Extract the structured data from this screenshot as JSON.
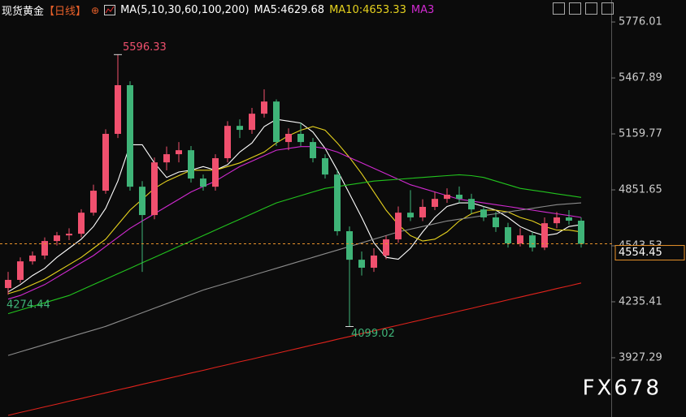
{
  "chart_data": {
    "type": "candlestick",
    "symbol": "现货黄金",
    "period": "【日线】",
    "indicator": "MA(5,10,30,60,100,200)",
    "legend": [
      {
        "label": "MA5:4629.68",
        "color": "#ffffff"
      },
      {
        "label": "MA10:4653.33",
        "color": "#e6d21e"
      },
      {
        "label": "MA3",
        "color": "#d12ad1"
      }
    ],
    "watermark": "FX678",
    "up_color": "#f0506e",
    "down_color": "#3fb478",
    "ylim": [
      3601,
      5897
    ],
    "yticks": [
      3927.29,
      4235.41,
      4543.53,
      4851.65,
      5159.77,
      5467.89,
      5776.01
    ],
    "open": [
      4311,
      4356,
      4458,
      4490,
      4570,
      4601,
      4610,
      4726,
      4847,
      5160,
      5428,
      4869,
      4713,
      5003,
      5048,
      5070,
      4914,
      4869,
      5026,
      5204,
      5182,
      5271,
      5338,
      5115,
      5160,
      5115,
      5026,
      4936,
      4624,
      4467,
      4423,
      4490,
      4579,
      4726,
      4700,
      4758,
      4802,
      4825,
      4802,
      4744,
      4700,
      4646,
      4557,
      4601,
      4534,
      4668,
      4700,
      4682
    ],
    "high": [
      4400,
      4480,
      4512,
      4590,
      4620,
      4640,
      4745,
      4880,
      5185,
      5596.33,
      5450,
      4900,
      5030,
      5090,
      5115,
      5093,
      4936,
      5048,
      5230,
      5240,
      5303,
      5405,
      5350,
      5190,
      5220,
      5137,
      5048,
      4959,
      4650,
      4512,
      4530,
      4600,
      4760,
      4850,
      4800,
      4840,
      4860,
      4870,
      4830,
      4760,
      4730,
      4670,
      4640,
      4620,
      4700,
      4730,
      4740,
      4700
    ],
    "low": [
      4274.44,
      4340,
      4440,
      4470,
      4545,
      4575,
      4590,
      4710,
      4830,
      5137,
      4847,
      4400,
      4690,
      4959,
      5003,
      4892,
      4847,
      4847,
      5003,
      5137,
      5160,
      5250,
      5093,
      5070,
      5093,
      5003,
      4914,
      4600,
      4099.02,
      4380,
      4400,
      4470,
      4560,
      4680,
      4680,
      4740,
      4780,
      4780,
      4720,
      4680,
      4620,
      4534,
      4540,
      4512,
      4520,
      4640,
      4660,
      4534
    ],
    "close": [
      4356,
      4458,
      4490,
      4570,
      4601,
      4610,
      4726,
      4847,
      5160,
      5428,
      4869,
      4713,
      5003,
      5048,
      5070,
      4914,
      4869,
      5026,
      5204,
      5182,
      5271,
      5338,
      5115,
      5160,
      5115,
      5026,
      4936,
      4624,
      4467,
      4423,
      4490,
      4579,
      4726,
      4700,
      4758,
      4802,
      4825,
      4802,
      4744,
      4700,
      4646,
      4557,
      4601,
      4534,
      4668,
      4700,
      4682,
      4554.45
    ],
    "lines": [
      {
        "color": "#ffffff",
        "values": [
          4290,
          4330,
          4380,
          4420,
          4480,
          4530,
          4580,
          4650,
          4750,
          4900,
          5100,
          5100,
          5000,
          4920,
          4950,
          4960,
          4980,
          4960,
          4990,
          5060,
          5110,
          5200,
          5240,
          5230,
          5220,
          5170,
          5080,
          4960,
          4830,
          4700,
          4560,
          4480,
          4470,
          4530,
          4620,
          4700,
          4760,
          4780,
          4780,
          4760,
          4740,
          4700,
          4650,
          4620,
          4600,
          4610,
          4650,
          4660
        ]
      },
      {
        "color": "#e6d21e",
        "values": [
          4280,
          4300,
          4330,
          4360,
          4400,
          4440,
          4480,
          4530,
          4580,
          4660,
          4740,
          4800,
          4860,
          4900,
          4930,
          4960,
          4960,
          4960,
          4980,
          5000,
          5030,
          5060,
          5110,
          5150,
          5180,
          5200,
          5180,
          5110,
          5030,
          4940,
          4840,
          4740,
          4660,
          4600,
          4570,
          4580,
          4620,
          4680,
          4720,
          4740,
          4740,
          4730,
          4700,
          4680,
          4650,
          4630,
          4630,
          4620
        ]
      },
      {
        "color": "#d12ad1",
        "values": [
          4250,
          4270,
          4300,
          4330,
          4370,
          4410,
          4450,
          4490,
          4540,
          4590,
          4640,
          4680,
          4720,
          4760,
          4800,
          4840,
          4870,
          4900,
          4940,
          4980,
          5010,
          5040,
          5070,
          5080,
          5090,
          5090,
          5080,
          5060,
          5030,
          5000,
          4970,
          4940,
          4910,
          4880,
          4860,
          4840,
          4820,
          4800,
          4790,
          4780,
          4770,
          4760,
          4750,
          4740,
          4730,
          4720,
          4710,
          4700
        ]
      },
      {
        "color": "#22c41e",
        "values": [
          4170,
          4190,
          4210,
          4230,
          4250,
          4270,
          4300,
          4330,
          4360,
          4390,
          4420,
          4450,
          4480,
          4510,
          4540,
          4570,
          4600,
          4630,
          4660,
          4690,
          4720,
          4750,
          4780,
          4800,
          4820,
          4840,
          4860,
          4870,
          4880,
          4890,
          4900,
          4905,
          4910,
          4915,
          4920,
          4925,
          4930,
          4935,
          4930,
          4920,
          4900,
          4880,
          4860,
          4850,
          4840,
          4830,
          4820,
          4810
        ]
      },
      {
        "color": "#8c8c8c",
        "values": [
          3940,
          3960,
          3980,
          4000,
          4020,
          4040,
          4060,
          4080,
          4100,
          4125,
          4150,
          4175,
          4200,
          4225,
          4250,
          4275,
          4300,
          4320,
          4340,
          4360,
          4380,
          4400,
          4420,
          4440,
          4460,
          4480,
          4500,
          4520,
          4540,
          4560,
          4580,
          4600,
          4620,
          4635,
          4650,
          4665,
          4680,
          4690,
          4700,
          4710,
          4720,
          4730,
          4740,
          4750,
          4760,
          4770,
          4775,
          4780
        ]
      },
      {
        "color": "#e0231c",
        "values": [
          3610,
          3626,
          3641,
          3657,
          3672,
          3688,
          3703,
          3719,
          3734,
          3750,
          3765,
          3781,
          3796,
          3812,
          3827,
          3843,
          3858,
          3874,
          3889,
          3905,
          3920,
          3936,
          3951,
          3967,
          3982,
          3998,
          4013,
          4029,
          4044,
          4060,
          4075,
          4091,
          4106,
          4122,
          4137,
          4153,
          4168,
          4184,
          4199,
          4215,
          4230,
          4246,
          4261,
          4277,
          4292,
          4308,
          4323,
          4339
        ]
      }
    ]
  }
}
